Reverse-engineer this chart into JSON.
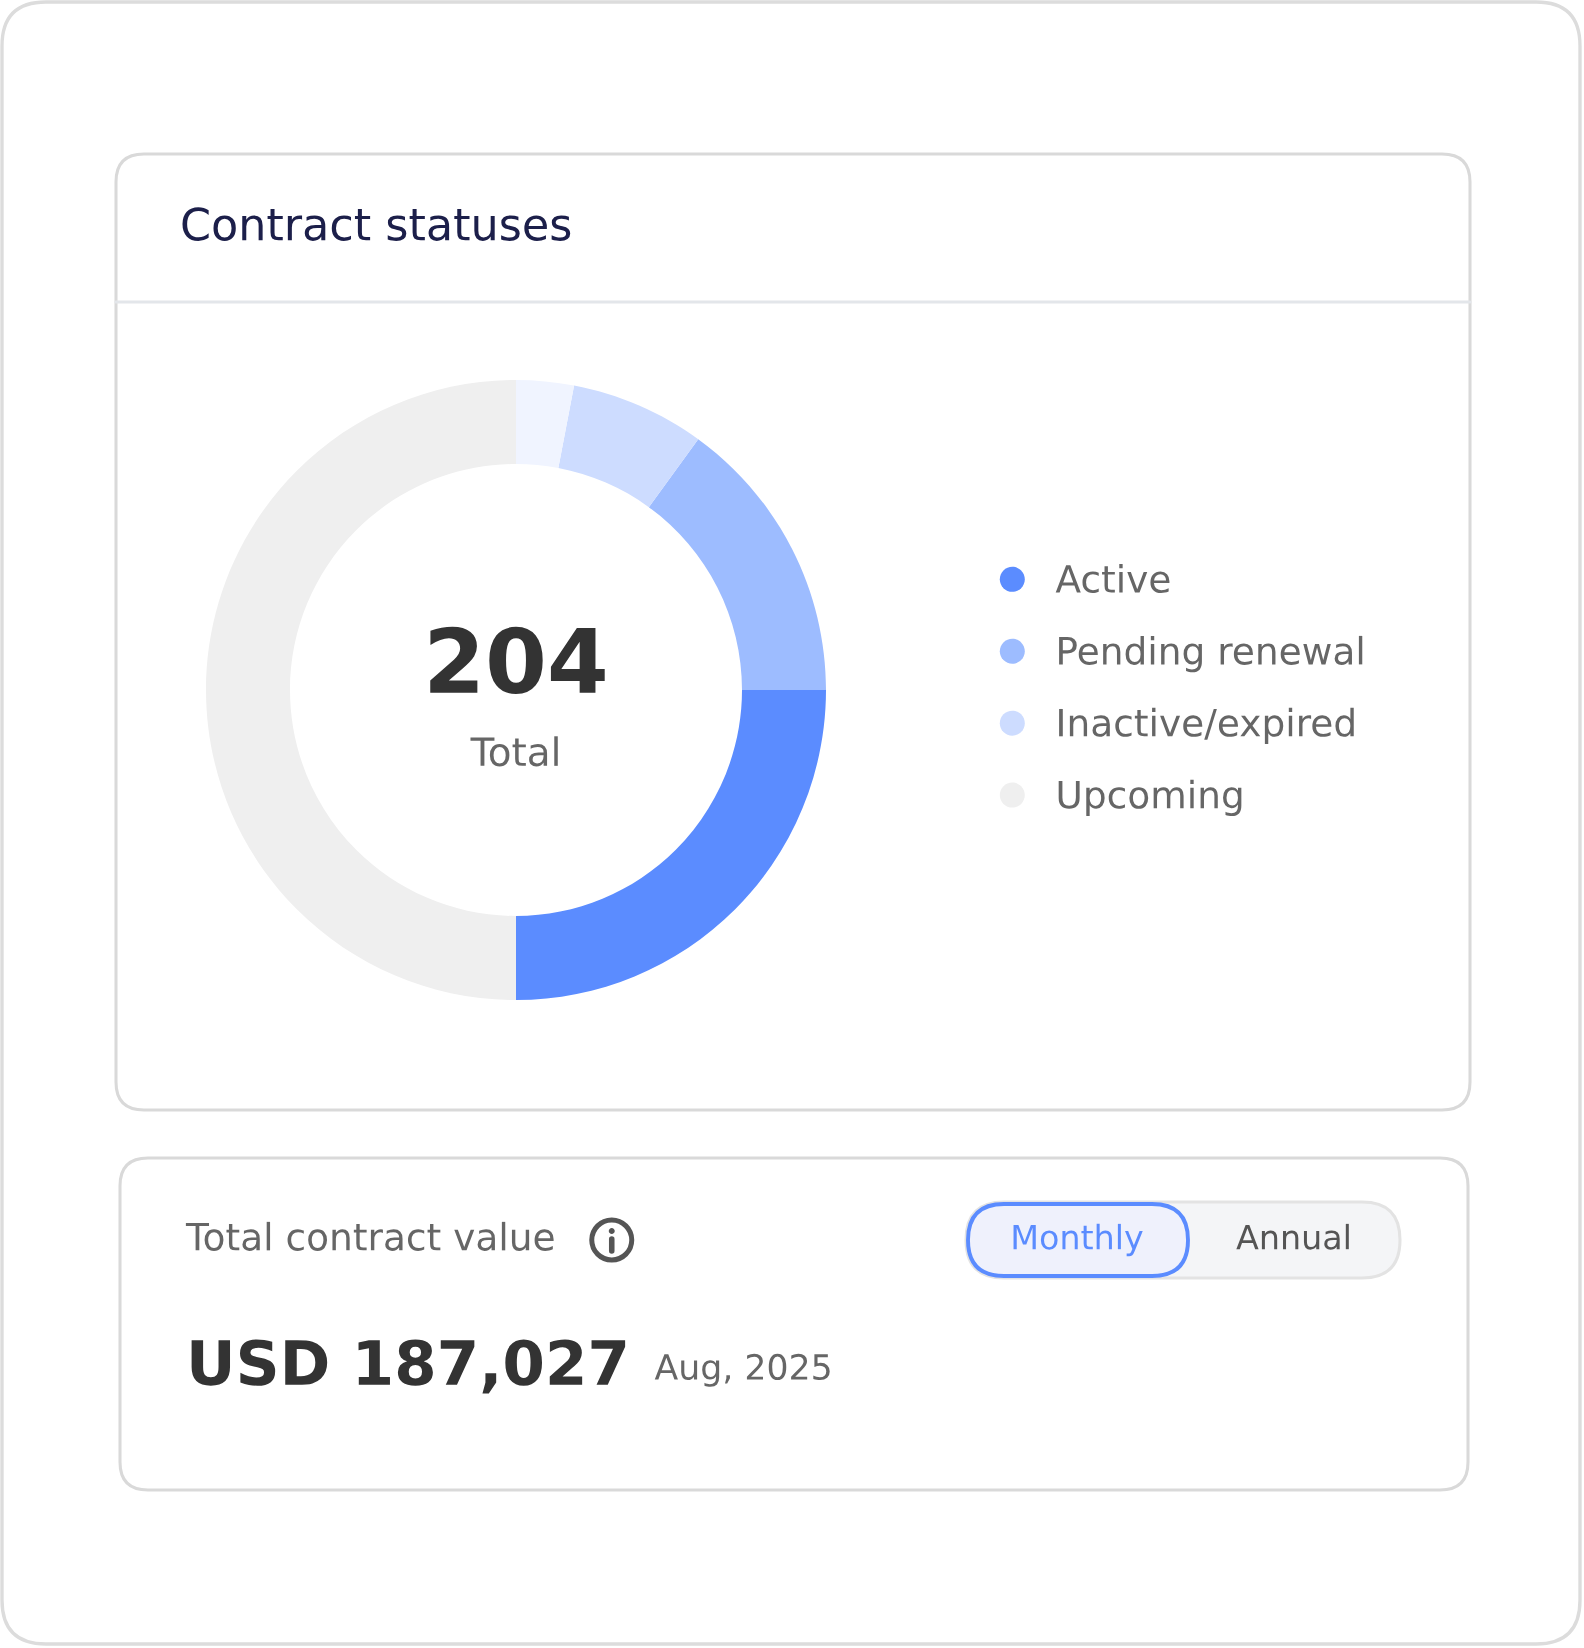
{
  "chart_data": [
    {
      "type": "donut",
      "title": "Contract statuses",
      "categories": [
        "Active",
        "Pending renewal",
        "Inactive/expired",
        null,
        "Upcoming"
      ],
      "values": [
        25,
        15,
        7,
        3,
        50
      ],
      "colors": [
        "#5b8cff",
        "#9dbcff",
        "#cddcff",
        "#f0f4ff",
        "#efefef"
      ],
      "annotations": [
        "204",
        "Total"
      ],
      "legend": "right"
    },
    {
      "type": "other",
      "title": "Total contract value",
      "annotations": [
        "Monthly",
        "Annual",
        "USD 187,027",
        "Aug, 2025"
      ]
    }
  ]
}
